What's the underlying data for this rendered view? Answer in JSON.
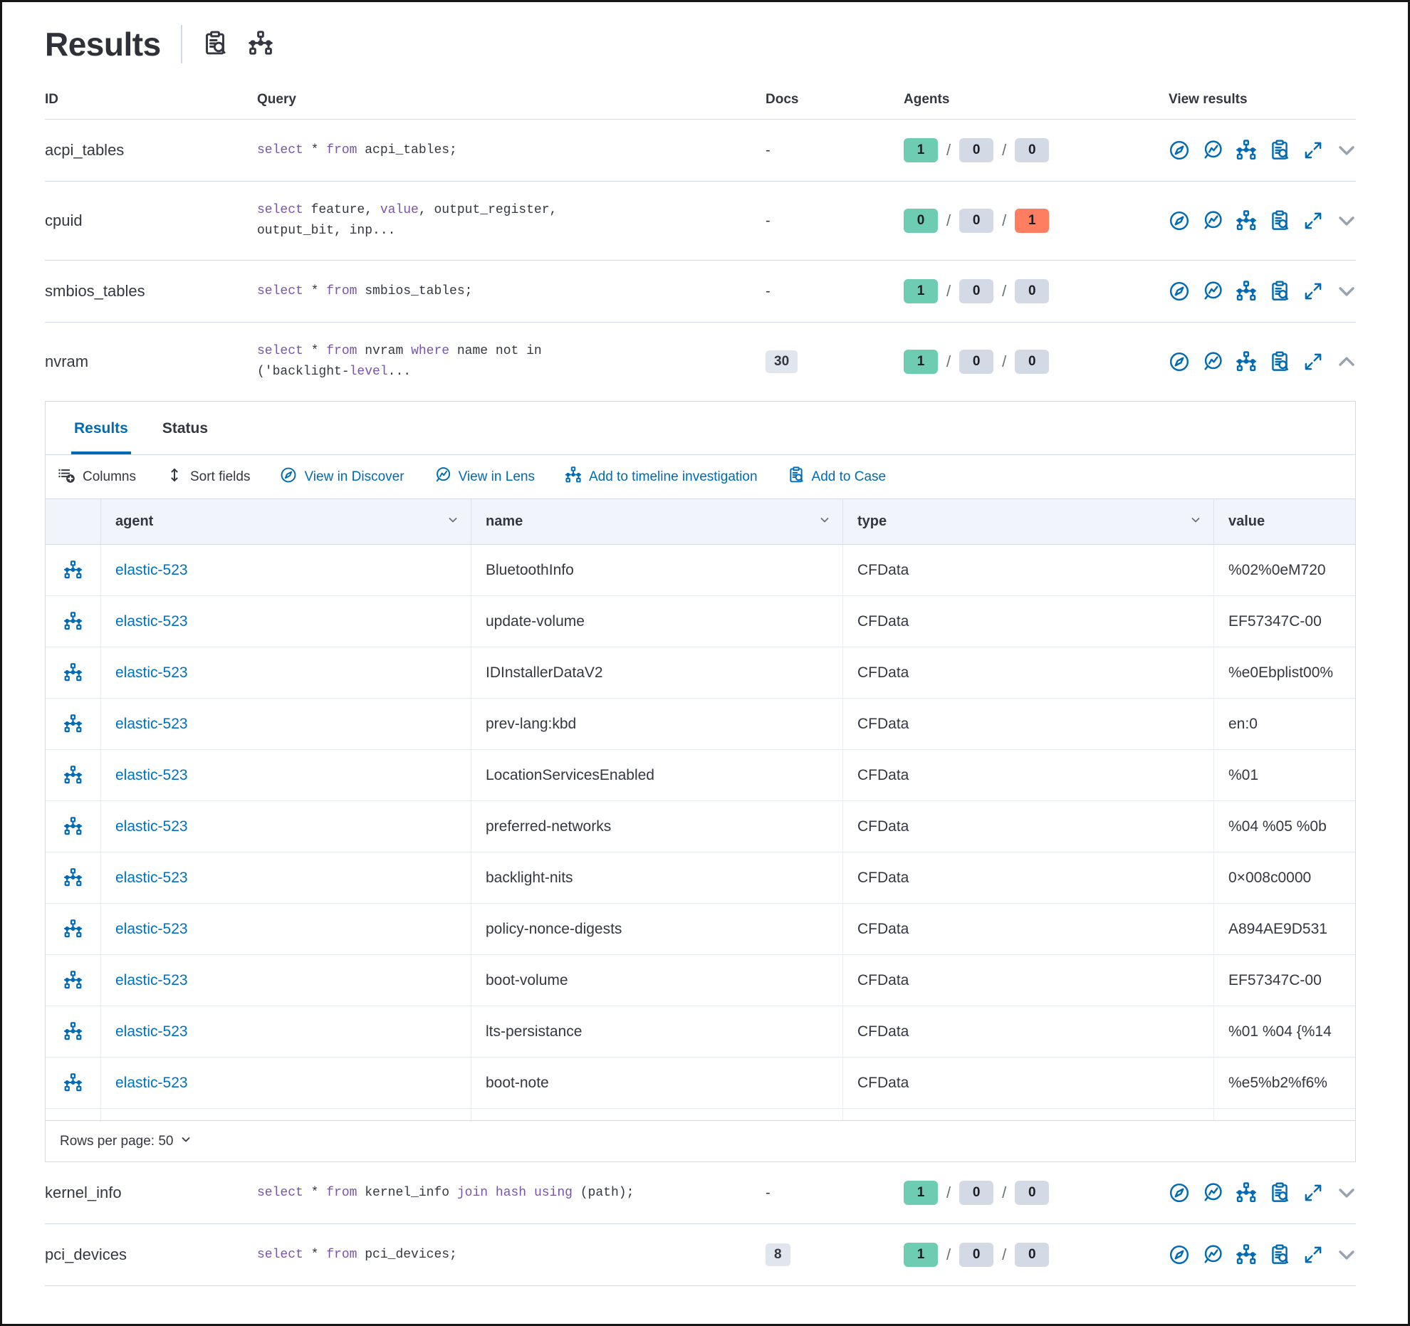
{
  "page": {
    "title": "Results"
  },
  "header_icons": [
    {
      "name": "inspect-saved-query-icon"
    },
    {
      "name": "timeline-icon"
    }
  ],
  "colors": {
    "accent_blue": "#006bb4",
    "link_blue": "#0071c2",
    "keyword_purple": "#7855aa",
    "badge_success": "#6dccb1",
    "badge_default": "#d3dae6",
    "badge_danger": "#ff7e62",
    "border": "#d3dae6",
    "grid_header_bg": "#f1f4fa"
  },
  "table": {
    "columns": [
      "ID",
      "Query",
      "Docs",
      "Agents",
      "View results"
    ],
    "rows": [
      {
        "id": "acpi_tables",
        "query_lines": [
          [
            [
              "select",
              1
            ],
            [
              " * ",
              0
            ],
            [
              "from",
              1
            ],
            [
              " acpi_tables;",
              0
            ]
          ]
        ],
        "docs": "-",
        "docs_badge": false,
        "agents": [
          {
            "v": "1",
            "c": "success"
          },
          {
            "v": "0",
            "c": "default"
          },
          {
            "v": "0",
            "c": "default"
          }
        ],
        "expanded": false
      },
      {
        "id": "cpuid",
        "query_lines": [
          [
            [
              "select",
              1
            ],
            [
              " feature, ",
              0
            ],
            [
              "value",
              1
            ],
            [
              ", output_register,",
              0
            ]
          ],
          [
            [
              "output_bit, inp...",
              0
            ]
          ]
        ],
        "docs": "-",
        "docs_badge": false,
        "agents": [
          {
            "v": "0",
            "c": "success"
          },
          {
            "v": "0",
            "c": "default"
          },
          {
            "v": "1",
            "c": "danger"
          }
        ],
        "expanded": false
      },
      {
        "id": "smbios_tables",
        "query_lines": [
          [
            [
              "select",
              1
            ],
            [
              " * ",
              0
            ],
            [
              "from",
              1
            ],
            [
              " smbios_tables;",
              0
            ]
          ]
        ],
        "docs": "-",
        "docs_badge": false,
        "agents": [
          {
            "v": "1",
            "c": "success"
          },
          {
            "v": "0",
            "c": "default"
          },
          {
            "v": "0",
            "c": "default"
          }
        ],
        "expanded": false
      },
      {
        "id": "nvram",
        "query_lines": [
          [
            [
              "select",
              1
            ],
            [
              " * ",
              0
            ],
            [
              "from",
              1
            ],
            [
              " nvram ",
              0
            ],
            [
              "where",
              1
            ],
            [
              " name not in",
              0
            ]
          ],
          [
            [
              "('backlight-",
              0
            ],
            [
              "level",
              1
            ],
            [
              "...",
              0
            ]
          ]
        ],
        "docs": "30",
        "docs_badge": true,
        "agents": [
          {
            "v": "1",
            "c": "success"
          },
          {
            "v": "0",
            "c": "default"
          },
          {
            "v": "0",
            "c": "default"
          }
        ],
        "expanded": true
      },
      {
        "id": "kernel_info",
        "query_lines": [
          [
            [
              "select",
              1
            ],
            [
              " * ",
              0
            ],
            [
              "from",
              1
            ],
            [
              " kernel_info ",
              0
            ],
            [
              "join",
              1
            ],
            [
              " ",
              0
            ],
            [
              "hash",
              1
            ],
            [
              " ",
              0
            ],
            [
              "using",
              1
            ],
            [
              " (path);",
              0
            ]
          ]
        ],
        "docs": "-",
        "docs_badge": false,
        "agents": [
          {
            "v": "1",
            "c": "success"
          },
          {
            "v": "0",
            "c": "default"
          },
          {
            "v": "0",
            "c": "default"
          }
        ],
        "expanded": false
      },
      {
        "id": "pci_devices",
        "query_lines": [
          [
            [
              "select",
              1
            ],
            [
              " * ",
              0
            ],
            [
              "from",
              1
            ],
            [
              " pci_devices;",
              0
            ]
          ]
        ],
        "docs": "8",
        "docs_badge": true,
        "agents": [
          {
            "v": "1",
            "c": "success"
          },
          {
            "v": "0",
            "c": "default"
          },
          {
            "v": "0",
            "c": "default"
          }
        ],
        "expanded": false
      }
    ]
  },
  "panel": {
    "tabs": [
      {
        "label": "Results",
        "active": true
      },
      {
        "label": "Status",
        "active": false
      }
    ],
    "toolbar": [
      {
        "label": "Columns",
        "icon": "columns",
        "color": "dark"
      },
      {
        "label": "Sort fields",
        "icon": "sort",
        "color": "dark"
      },
      {
        "label": "View in Discover",
        "icon": "compass",
        "color": "blue"
      },
      {
        "label": "View in Lens",
        "icon": "lens",
        "color": "blue"
      },
      {
        "label": "Add to timeline investigation",
        "icon": "network",
        "color": "blue"
      },
      {
        "label": "Add to Case",
        "icon": "case",
        "color": "blue"
      }
    ],
    "grid": {
      "columns": [
        "agent",
        "name",
        "type",
        "value"
      ],
      "rows": [
        {
          "agent": "elastic-523",
          "name": "BluetoothInfo",
          "type": "CFData",
          "value": "%02%0eM720"
        },
        {
          "agent": "elastic-523",
          "name": "update-volume",
          "type": "CFData",
          "value": "EF57347C-00"
        },
        {
          "agent": "elastic-523",
          "name": "IDInstallerDataV2",
          "type": "CFData",
          "value": "%e0Ebplist00%"
        },
        {
          "agent": "elastic-523",
          "name": "prev-lang:kbd",
          "type": "CFData",
          "value": "en:0"
        },
        {
          "agent": "elastic-523",
          "name": "LocationServicesEnabled",
          "type": "CFData",
          "value": "%01"
        },
        {
          "agent": "elastic-523",
          "name": "preferred-networks",
          "type": "CFData",
          "value": "%04 %05 %0b"
        },
        {
          "agent": "elastic-523",
          "name": "backlight-nits",
          "type": "CFData",
          "value": "0×008c0000"
        },
        {
          "agent": "elastic-523",
          "name": "policy-nonce-digests",
          "type": "CFData",
          "value": "A894AE9D531"
        },
        {
          "agent": "elastic-523",
          "name": "boot-volume",
          "type": "CFData",
          "value": "EF57347C-00"
        },
        {
          "agent": "elastic-523",
          "name": "lts-persistance",
          "type": "CFData",
          "value": "%01 %04 {%14"
        },
        {
          "agent": "elastic-523",
          "name": "boot-note",
          "type": "CFData",
          "value": "%e5%b2%f6%"
        }
      ]
    },
    "footer": {
      "rows_per_page": "Rows per page: 50"
    }
  }
}
